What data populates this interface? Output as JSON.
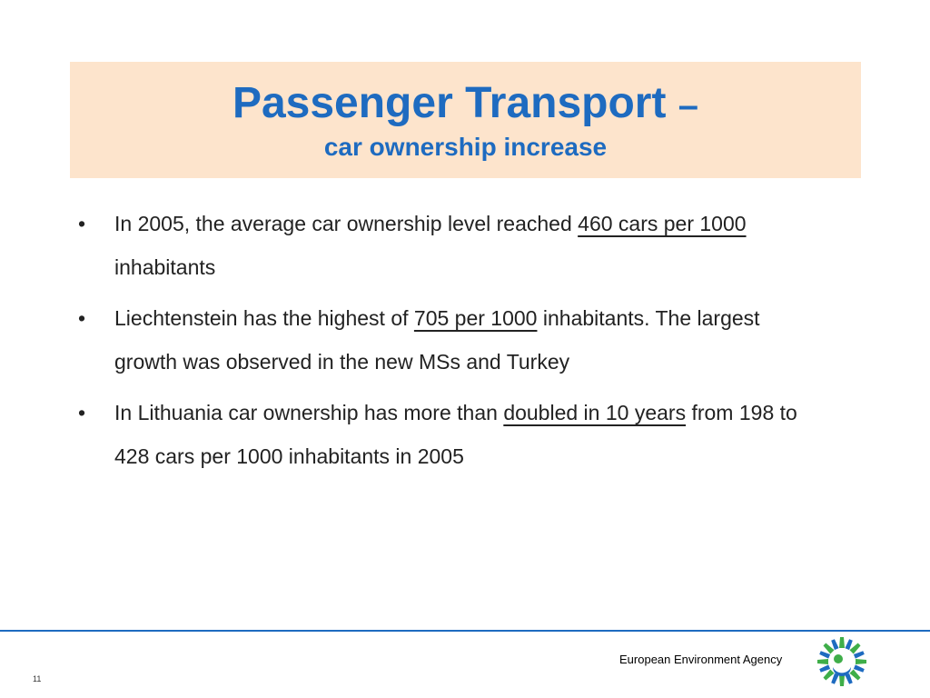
{
  "slide": {
    "title_main": "Passenger Transport",
    "title_dash": "–",
    "title_sub": "car ownership increase"
  },
  "bullets": [
    {
      "pre": "In 2005, the average car ownership level reached ",
      "u": "460 cars per 1000",
      "post": " inhabitants"
    },
    {
      "pre": "Liechtenstein has the highest of ",
      "u": "705 per 1000",
      "post": " inhabitants. The largest growth was observed in the new MSs and Turkey"
    },
    {
      "pre": "In Lithuania car ownership has more than ",
      "u": "doubled in 10 years",
      "post": " from 198 to 428 cars per 1000 inhabitants in 2005"
    }
  ],
  "footer": {
    "agency": "European Environment Agency",
    "page_number": "11",
    "logo_icon": "eea-sun-logo-icon",
    "colors": {
      "accent": "#1e6bc0",
      "title_bg": "#fde4cc",
      "logo_blue": "#1e6bc0",
      "logo_green": "#3fae49"
    }
  }
}
